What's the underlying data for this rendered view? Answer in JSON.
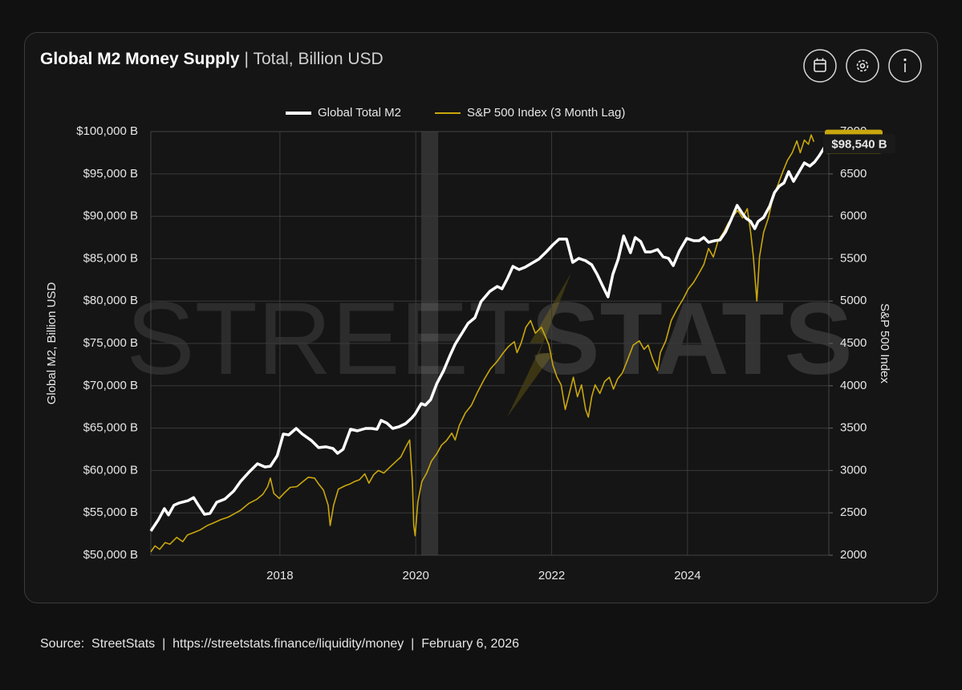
{
  "chart_data": {
    "type": "line",
    "title": "Global M2 Money Supply",
    "subtitle": "| Total, Billion USD",
    "ylabel": "Global M2, Billion USD",
    "y2label": "S&P 500 Index",
    "watermark": [
      "STREET",
      "STATS"
    ],
    "source": "Source:  StreetStats  |  https://streetstats.finance/liquidity/money  |  February 6, 2026",
    "xlim": [
      2016.1,
      2026.08
    ],
    "xticks": [
      2018,
      2020,
      2022,
      2024
    ],
    "ylim": [
      50000,
      100000
    ],
    "yticks": [
      {
        "value": 50000,
        "label": "$50,000 B"
      },
      {
        "value": 55000,
        "label": "$55,000 B"
      },
      {
        "value": 60000,
        "label": "$60,000 B"
      },
      {
        "value": 65000,
        "label": "$65,000 B"
      },
      {
        "value": 70000,
        "label": "$70,000 B"
      },
      {
        "value": 75000,
        "label": "$75,000 B"
      },
      {
        "value": 80000,
        "label": "$80,000 B"
      },
      {
        "value": 85000,
        "label": "$85,000 B"
      },
      {
        "value": 90000,
        "label": "$90,000 B"
      },
      {
        "value": 95000,
        "label": "$95,000 B"
      },
      {
        "value": 100000,
        "label": "$100,000 B"
      }
    ],
    "y2lim": [
      2000,
      7000
    ],
    "y2ticks": [
      2000,
      2500,
      3000,
      3500,
      4000,
      4500,
      5000,
      5500,
      6000,
      6500,
      7000
    ],
    "grid": true,
    "shaded_region": [
      2020.08,
      2020.33
    ],
    "series": [
      {
        "name": "Global Total M2",
        "color": "#ffffff",
        "axis": "y",
        "end_label": "$98,540 B",
        "x": [
          2016.1,
          2016.21,
          2016.3,
          2016.36,
          2016.44,
          2016.51,
          2016.65,
          2016.73,
          2016.8,
          2016.89,
          2016.97,
          2017.07,
          2017.19,
          2017.32,
          2017.42,
          2017.55,
          2017.67,
          2017.78,
          2017.86,
          2017.96,
          2018.05,
          2018.13,
          2018.24,
          2018.33,
          2018.46,
          2018.57,
          2018.68,
          2018.78,
          2018.85,
          2018.93,
          2019.04,
          2019.14,
          2019.26,
          2019.35,
          2019.43,
          2019.49,
          2019.57,
          2019.66,
          2019.75,
          2019.85,
          2019.94,
          2019.99,
          2020.08,
          2020.14,
          2020.22,
          2020.31,
          2020.41,
          2020.5,
          2020.58,
          2020.69,
          2020.77,
          2020.87,
          2020.96,
          2021.09,
          2021.2,
          2021.27,
          2021.35,
          2021.43,
          2021.52,
          2021.61,
          2021.71,
          2021.81,
          2021.92,
          2022.02,
          2022.11,
          2022.22,
          2022.31,
          2022.4,
          2022.5,
          2022.59,
          2022.67,
          2022.76,
          2022.83,
          2022.9,
          2022.98,
          2023.06,
          2023.16,
          2023.23,
          2023.31,
          2023.38,
          2023.46,
          2023.56,
          2023.64,
          2023.72,
          2023.79,
          2023.88,
          2023.99,
          2024.09,
          2024.17,
          2024.24,
          2024.31,
          2024.4,
          2024.48,
          2024.56,
          2024.64,
          2024.73,
          2024.8,
          2024.86,
          2024.93,
          2024.99,
          2025.04,
          2025.12,
          2025.21,
          2025.28,
          2025.35,
          2025.42,
          2025.49,
          2025.56,
          2025.65,
          2025.72,
          2025.8,
          2025.87,
          2025.94,
          2026.02,
          2026.06
        ],
        "values": [
          52850,
          54180,
          55500,
          54750,
          55900,
          56150,
          56450,
          56800,
          55900,
          54830,
          54930,
          56250,
          56630,
          57580,
          58700,
          59850,
          60800,
          60420,
          60500,
          61740,
          64300,
          64200,
          64960,
          64300,
          63560,
          62700,
          62790,
          62600,
          62030,
          62500,
          64870,
          64680,
          64960,
          64960,
          64870,
          65910,
          65620,
          64960,
          65150,
          65530,
          66190,
          66670,
          67900,
          67710,
          68370,
          70270,
          71780,
          73490,
          74910,
          76330,
          77370,
          78030,
          79920,
          81150,
          81720,
          81440,
          82670,
          84090,
          83710,
          84000,
          84470,
          84940,
          85800,
          86650,
          87310,
          87310,
          84560,
          85040,
          84750,
          84280,
          83140,
          81630,
          80490,
          83140,
          84940,
          87690,
          85700,
          87500,
          87030,
          85800,
          85800,
          86080,
          85230,
          85040,
          84190,
          85890,
          87400,
          87120,
          87120,
          87500,
          86930,
          87120,
          87220,
          88160,
          89580,
          91290,
          90440,
          89770,
          89390,
          88540,
          89390,
          89870,
          91190,
          92800,
          93560,
          93940,
          95270,
          94130,
          95360,
          96310,
          95930,
          96400,
          97160,
          98200,
          98540
        ]
      },
      {
        "name": "S&P 500 Index (3 Month Lag)",
        "color": "#c9a70e",
        "axis": "y2",
        "x": [
          2016.1,
          2016.16,
          2016.23,
          2016.31,
          2016.38,
          2016.48,
          2016.57,
          2016.64,
          2016.74,
          2016.83,
          2016.93,
          2017.02,
          2017.13,
          2017.24,
          2017.33,
          2017.42,
          2017.54,
          2017.66,
          2017.75,
          2017.82,
          2017.86,
          2017.91,
          2017.99,
          2018.07,
          2018.15,
          2018.25,
          2018.34,
          2018.42,
          2018.51,
          2018.58,
          2018.64,
          2018.71,
          2018.74,
          2018.79,
          2018.86,
          2018.96,
          2019.03,
          2019.1,
          2019.17,
          2019.25,
          2019.31,
          2019.38,
          2019.45,
          2019.53,
          2019.62,
          2019.7,
          2019.78,
          2019.86,
          2019.91,
          2019.95,
          2019.97,
          2019.99,
          2020.03,
          2020.09,
          2020.16,
          2020.23,
          2020.31,
          2020.38,
          2020.45,
          2020.53,
          2020.58,
          2020.64,
          2020.73,
          2020.82,
          2020.9,
          2021.01,
          2021.1,
          2021.2,
          2021.29,
          2021.36,
          2021.45,
          2021.49,
          2021.55,
          2021.62,
          2021.69,
          2021.76,
          2021.85,
          2021.91,
          2021.96,
          2022.02,
          2022.08,
          2022.14,
          2022.2,
          2022.26,
          2022.32,
          2022.38,
          2022.44,
          2022.5,
          2022.54,
          2022.59,
          2022.64,
          2022.71,
          2022.78,
          2022.85,
          2022.91,
          2022.97,
          2023.04,
          2023.11,
          2023.2,
          2023.29,
          2023.36,
          2023.42,
          2023.49,
          2023.56,
          2023.6,
          2023.68,
          2023.76,
          2023.85,
          2023.94,
          2024.01,
          2024.09,
          2024.17,
          2024.24,
          2024.31,
          2024.38,
          2024.45,
          2024.53,
          2024.6,
          2024.67,
          2024.74,
          2024.81,
          2024.88,
          2024.93,
          2024.97,
          2025.02,
          2025.06,
          2025.12,
          2025.19,
          2025.26,
          2025.33,
          2025.4,
          2025.47,
          2025.54,
          2025.61,
          2025.66,
          2025.72,
          2025.78,
          2025.82,
          2025.86
        ],
        "values": [
          2040,
          2110,
          2070,
          2150,
          2130,
          2210,
          2160,
          2240,
          2270,
          2300,
          2350,
          2380,
          2420,
          2450,
          2490,
          2530,
          2610,
          2660,
          2720,
          2810,
          2910,
          2730,
          2670,
          2740,
          2800,
          2810,
          2870,
          2920,
          2910,
          2830,
          2770,
          2590,
          2350,
          2590,
          2780,
          2820,
          2840,
          2870,
          2890,
          2960,
          2850,
          2950,
          3000,
          2970,
          3040,
          3100,
          3160,
          3290,
          3360,
          2870,
          2350,
          2230,
          2630,
          2870,
          2970,
          3110,
          3200,
          3300,
          3350,
          3440,
          3360,
          3530,
          3680,
          3770,
          3910,
          4080,
          4200,
          4290,
          4390,
          4460,
          4520,
          4390,
          4500,
          4690,
          4770,
          4620,
          4690,
          4580,
          4480,
          4240,
          4100,
          4010,
          3720,
          3910,
          4100,
          3870,
          4010,
          3720,
          3630,
          3870,
          4010,
          3910,
          4050,
          4100,
          3960,
          4080,
          4150,
          4290,
          4480,
          4530,
          4430,
          4480,
          4310,
          4180,
          4390,
          4530,
          4770,
          4910,
          5030,
          5140,
          5220,
          5330,
          5430,
          5620,
          5520,
          5710,
          5810,
          5920,
          6000,
          6070,
          5980,
          6090,
          5810,
          5520,
          5000,
          5520,
          5810,
          5980,
          6230,
          6370,
          6520,
          6660,
          6750,
          6890,
          6750,
          6900,
          6850,
          6960,
          6880
        ]
      }
    ]
  }
}
